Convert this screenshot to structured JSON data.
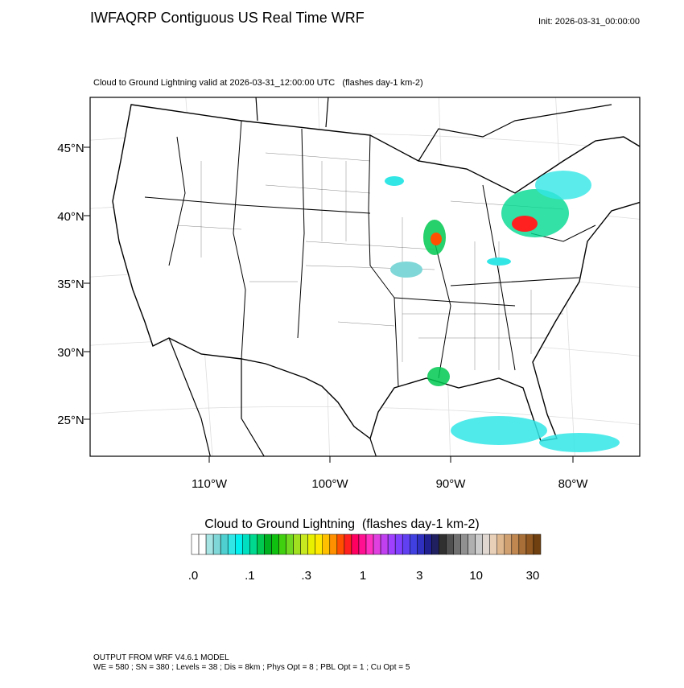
{
  "header": {
    "title": "IWFAQRP Contiguous US Real Time WRF",
    "init": "Init: 2026-03-31_00:00:00"
  },
  "map": {
    "subtitle": "Cloud to Ground Lightning valid at 2026-03-31_12:00:00 UTC   (flashes day-1 km-2)",
    "lat_labels": [
      "45°N",
      "40°N",
      "35°N",
      "30°N",
      "25°N"
    ],
    "lon_labels": [
      "110°W",
      "100°W",
      "90°W",
      "80°W"
    ]
  },
  "colorbar": {
    "title": "Cloud to Ground Lightning  (flashes day-1 km-2)",
    "labels": [
      ".0",
      ".1",
      ".3",
      "1",
      "3",
      "10",
      "30"
    ],
    "colors": [
      "#ffffff",
      "#ffffff",
      "#a6e3e3",
      "#7fd7d7",
      "#4fcfcf",
      "#33e6e6",
      "#00f0f0",
      "#00e0c0",
      "#00d890",
      "#00c850",
      "#00b020",
      "#10c010",
      "#40d010",
      "#70d820",
      "#a0e020",
      "#c8e820",
      "#e8f000",
      "#ffe800",
      "#ffc000",
      "#ff9000",
      "#ff5000",
      "#ff2020",
      "#ff0060",
      "#ff1090",
      "#ff30c0",
      "#e040e0",
      "#c040f0",
      "#a040ff",
      "#8040ff",
      "#6040f0",
      "#4040e0",
      "#3030c0",
      "#202090",
      "#202060",
      "#303030",
      "#505050",
      "#707070",
      "#909090",
      "#b0b0b0",
      "#cccccc",
      "#e0d8d0",
      "#e8d0b8",
      "#e0b890",
      "#d0a070",
      "#c08850",
      "#a87038",
      "#905820",
      "#704010"
    ]
  },
  "footer": {
    "lines": [
      "OUTPUT FROM WRF V4.6.1 MODEL",
      "WE = 580 ; SN = 380 ; Levels = 38 ; Dis = 8km ; Phys Opt = 8 ; PBL Opt = 1 ; Cu Opt = 5"
    ]
  }
}
